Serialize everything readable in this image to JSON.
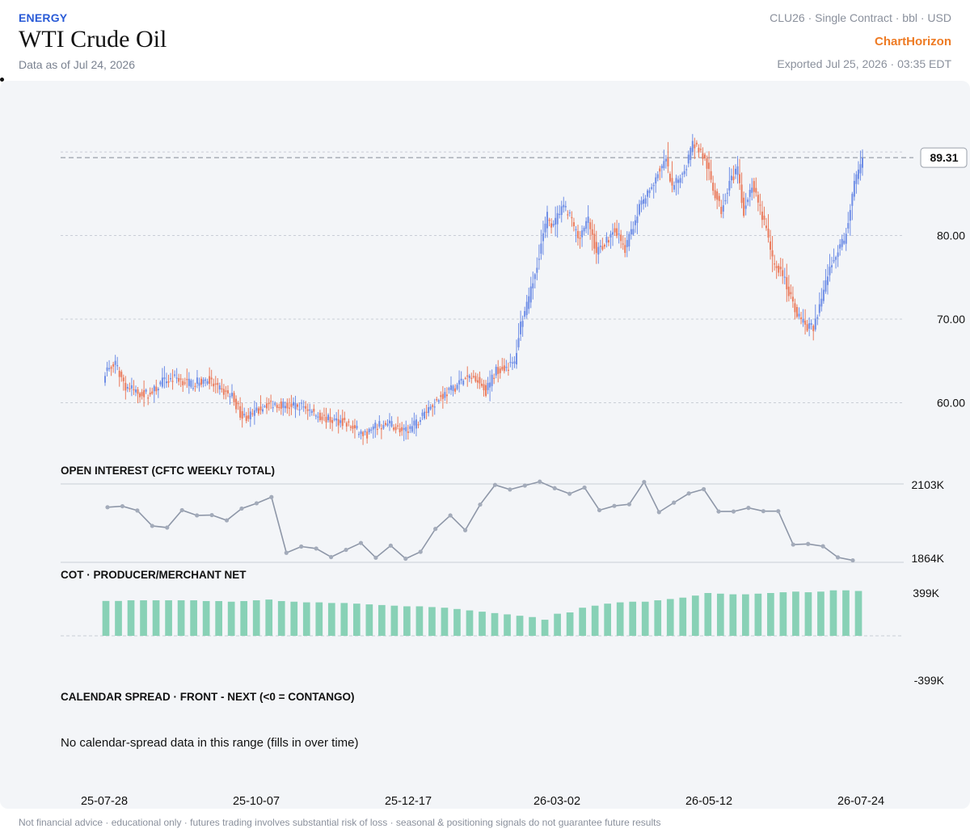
{
  "header": {
    "category": "ENERGY",
    "title": "WTI Crude Oil",
    "as_of": "Data as of Jul 24, 2026",
    "contract": "CLU26 · Single Contract · bbl · USD",
    "brand": "ChartHorizon",
    "exported": "Exported Jul 25, 2026 · 03:35 EDT"
  },
  "footer": "Not financial advice · educational only · futures trading involves substantial risk of loss · seasonal & positioning signals do not guarantee future results",
  "colors": {
    "up": "#6f8ee6",
    "down": "#ea7b5c",
    "open_interest": "#8e97a8",
    "cot_bars": "#88d1b6",
    "grid": "#c9ced6",
    "panel_bg": "#f3f5f8"
  },
  "chart_data": [
    {
      "type": "candlestick",
      "name": "price",
      "yticks": [
        60.0,
        70.0,
        80.0
      ],
      "ytick_labels": [
        "60.00",
        "70.00",
        "80.00"
      ],
      "ylim": [
        53,
        94
      ],
      "last_price": 89.31,
      "last_price_label": "89.31",
      "xticks": [
        "25-07-28",
        "25-10-07",
        "25-12-17",
        "26-03-02",
        "26-05-12",
        "26-07-24"
      ],
      "anchors": [
        [
          0,
          63.8
        ],
        [
          5,
          64.5
        ],
        [
          10,
          62.0
        ],
        [
          16,
          61.2
        ],
        [
          22,
          61.0
        ],
        [
          28,
          62.5
        ],
        [
          35,
          63.0
        ],
        [
          42,
          62.2
        ],
        [
          50,
          62.8
        ],
        [
          56,
          61.5
        ],
        [
          62,
          60.8
        ],
        [
          67,
          58.3
        ],
        [
          72,
          58.5
        ],
        [
          78,
          59.8
        ],
        [
          85,
          59.9
        ],
        [
          91,
          59.5
        ],
        [
          97,
          59.6
        ],
        [
          103,
          58.6
        ],
        [
          110,
          57.9
        ],
        [
          116,
          57.8
        ],
        [
          122,
          56.8
        ],
        [
          127,
          56.1
        ],
        [
          133,
          57.2
        ],
        [
          140,
          57.4
        ],
        [
          146,
          56.4
        ],
        [
          152,
          57.5
        ],
        [
          158,
          59.4
        ],
        [
          165,
          60.9
        ],
        [
          170,
          61.7
        ],
        [
          175,
          62.8
        ],
        [
          181,
          63.1
        ],
        [
          186,
          61.4
        ],
        [
          191,
          63.9
        ],
        [
          196,
          64.3
        ],
        [
          200,
          64.7
        ],
        [
          203,
          69.5
        ],
        [
          207,
          72.2
        ],
        [
          212,
          77.8
        ],
        [
          216,
          82.3
        ],
        [
          219,
          81.0
        ],
        [
          223,
          83.5
        ],
        [
          227,
          82.4
        ],
        [
          231,
          79.8
        ],
        [
          236,
          81.8
        ],
        [
          240,
          78.0
        ],
        [
          245,
          79.4
        ],
        [
          249,
          80.8
        ],
        [
          254,
          78.2
        ],
        [
          258,
          81.3
        ],
        [
          262,
          83.9
        ],
        [
          266,
          85.2
        ],
        [
          270,
          87.6
        ],
        [
          274,
          88.9
        ],
        [
          277,
          85.4
        ],
        [
          281,
          87.2
        ],
        [
          284,
          88.5
        ],
        [
          287,
          91.2
        ],
        [
          291,
          90.0
        ],
        [
          294,
          88.3
        ],
        [
          297,
          85.6
        ],
        [
          301,
          83.0
        ],
        [
          305,
          86.6
        ],
        [
          309,
          87.7
        ],
        [
          312,
          82.9
        ],
        [
          316,
          86.1
        ],
        [
          319,
          83.8
        ],
        [
          323,
          80.7
        ],
        [
          326,
          77.0
        ],
        [
          331,
          75.3
        ],
        [
          335,
          72.5
        ],
        [
          339,
          70.2
        ],
        [
          342,
          69.3
        ],
        [
          346,
          68.8
        ],
        [
          349,
          71.6
        ],
        [
          353,
          75.3
        ],
        [
          357,
          77.9
        ],
        [
          361,
          79.4
        ],
        [
          363,
          81.8
        ],
        [
          366,
          86.2
        ],
        [
          369,
          88.0
        ],
        [
          370,
          89.31
        ]
      ]
    },
    {
      "type": "line",
      "name": "open_interest",
      "title": "OPEN INTEREST (CFTC WEEKLY TOTAL)",
      "ylim": [
        1864,
        2103
      ],
      "ytick_labels": [
        "2103K",
        "1864K"
      ],
      "values": [
        2032,
        2035,
        2022,
        1975,
        1970,
        2023,
        2007,
        2008,
        1992,
        2028,
        2044,
        2063,
        1893,
        1912,
        1906,
        1880,
        1902,
        1923,
        1878,
        1915,
        1875,
        1896,
        1966,
        2007,
        1962,
        2040,
        2100,
        2086,
        2098,
        2110,
        2090,
        2073,
        2092,
        2023,
        2036,
        2041,
        2109,
        2017,
        2046,
        2074,
        2087,
        2019,
        2019,
        2030,
        2020,
        2020,
        1918,
        1920,
        1913,
        1879,
        1870
      ]
    },
    {
      "type": "bar",
      "name": "cot_producer_merchant_net",
      "title": "COT · PRODUCER/MERCHANT NET",
      "ylim": [
        -399,
        399
      ],
      "ytick_labels": [
        "399K",
        "-399K"
      ],
      "values": [
        325,
        325,
        331,
        331,
        331,
        331,
        331,
        331,
        324,
        324,
        318,
        324,
        331,
        338,
        324,
        318,
        312,
        312,
        306,
        306,
        300,
        293,
        287,
        281,
        275,
        275,
        268,
        262,
        250,
        237,
        225,
        212,
        200,
        187,
        175,
        150,
        206,
        218,
        262,
        281,
        300,
        312,
        318,
        318,
        331,
        343,
        356,
        375,
        399,
        393,
        387,
        387,
        393,
        399,
        406,
        412,
        406,
        412,
        424,
        424,
        418
      ]
    },
    {
      "type": "line",
      "name": "calendar_spread",
      "title": "CALENDAR SPREAD · FRONT - NEXT (<0 = CONTANGO)",
      "empty_message": "No calendar-spread data in this range (fills in over time)"
    }
  ]
}
